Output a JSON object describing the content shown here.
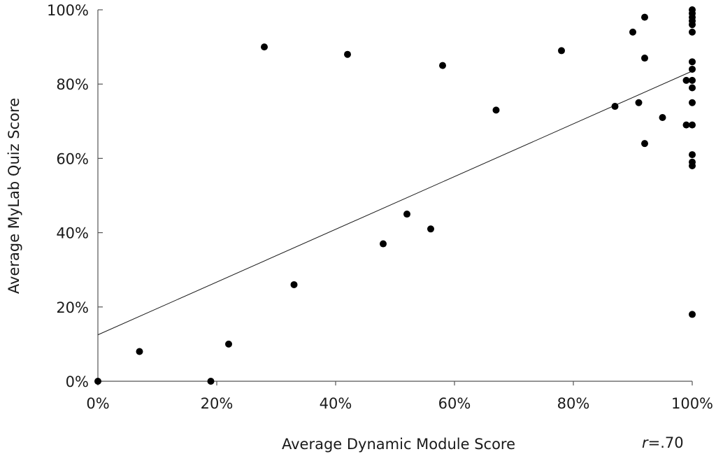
{
  "chart_data": {
    "type": "scatter",
    "title": "",
    "xlabel": "Average Dynamic Module Score",
    "ylabel": "Average MyLab Quiz Score",
    "correlation_label": {
      "prefix": "r",
      "value": "=.70"
    },
    "xlim": [
      0,
      100
    ],
    "ylim": [
      0,
      100
    ],
    "x_ticks": [
      {
        "value": 0,
        "label": "0%"
      },
      {
        "value": 20,
        "label": "20%"
      },
      {
        "value": 40,
        "label": "40%"
      },
      {
        "value": 60,
        "label": "60%"
      },
      {
        "value": 80,
        "label": "80%"
      },
      {
        "value": 100,
        "label": "100%"
      }
    ],
    "y_ticks": [
      {
        "value": 0,
        "label": "0%"
      },
      {
        "value": 20,
        "label": "20%"
      },
      {
        "value": 40,
        "label": "40%"
      },
      {
        "value": 60,
        "label": "60%"
      },
      {
        "value": 80,
        "label": "80%"
      },
      {
        "value": 100,
        "label": "100%"
      }
    ],
    "grid": false,
    "trendline": {
      "type": "linear",
      "start": {
        "x": 0,
        "y": 12.5
      },
      "end": {
        "x": 100,
        "y": 83.5
      }
    },
    "points": [
      {
        "x": 0,
        "y": 0
      },
      {
        "x": 7,
        "y": 8
      },
      {
        "x": 19,
        "y": 0
      },
      {
        "x": 22,
        "y": 10
      },
      {
        "x": 28,
        "y": 90
      },
      {
        "x": 33,
        "y": 26
      },
      {
        "x": 42,
        "y": 88
      },
      {
        "x": 48,
        "y": 37
      },
      {
        "x": 52,
        "y": 45
      },
      {
        "x": 56,
        "y": 41
      },
      {
        "x": 58,
        "y": 85
      },
      {
        "x": 67,
        "y": 73
      },
      {
        "x": 78,
        "y": 89
      },
      {
        "x": 87,
        "y": 74
      },
      {
        "x": 90,
        "y": 94
      },
      {
        "x": 91,
        "y": 75
      },
      {
        "x": 92,
        "y": 98
      },
      {
        "x": 92,
        "y": 87
      },
      {
        "x": 92,
        "y": 64
      },
      {
        "x": 95,
        "y": 71
      },
      {
        "x": 99,
        "y": 81
      },
      {
        "x": 99,
        "y": 69
      },
      {
        "x": 100,
        "y": 100
      },
      {
        "x": 100,
        "y": 99
      },
      {
        "x": 100,
        "y": 98
      },
      {
        "x": 100,
        "y": 97
      },
      {
        "x": 100,
        "y": 96
      },
      {
        "x": 100,
        "y": 94
      },
      {
        "x": 100,
        "y": 86
      },
      {
        "x": 100,
        "y": 84
      },
      {
        "x": 100,
        "y": 81
      },
      {
        "x": 100,
        "y": 79
      },
      {
        "x": 100,
        "y": 75
      },
      {
        "x": 100,
        "y": 69
      },
      {
        "x": 100,
        "y": 61
      },
      {
        "x": 100,
        "y": 59
      },
      {
        "x": 100,
        "y": 58
      },
      {
        "x": 100,
        "y": 18
      }
    ]
  }
}
